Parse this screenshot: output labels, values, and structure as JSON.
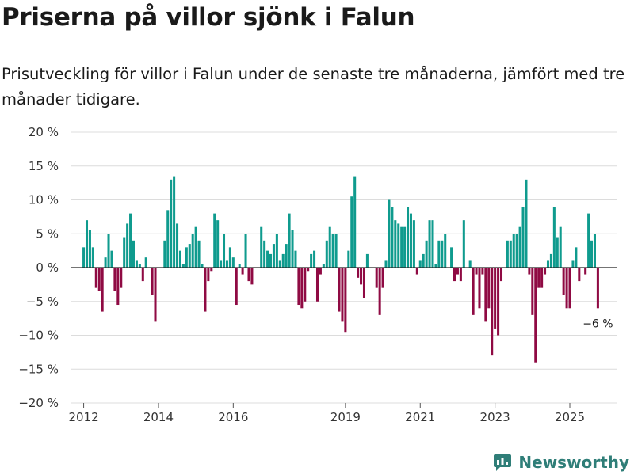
{
  "header": {
    "title": "Priserna på villor sjönk i Falun",
    "subtitle": "Prisutveckling för villor i Falun under de senaste tre månaderna, jämfört med tre månader tidigare."
  },
  "colors": {
    "positive": "#0f9b8e",
    "negative": "#8f0a43",
    "grid": "#dcdcdc",
    "axis": "#222222"
  },
  "brand": {
    "name": "Newsworthy"
  },
  "chart_data": {
    "type": "bar",
    "title": "Priserna på villor sjönk i Falun",
    "subtitle": "Prisutveckling för villor i Falun under de senaste tre månaderna, jämfört med tre månader tidigare.",
    "xlabel": "",
    "ylabel": "",
    "unit": "%",
    "ylim": [
      -20,
      20
    ],
    "yticks": [
      20,
      15,
      10,
      5,
      0,
      -5,
      -10,
      -15,
      -20
    ],
    "ytick_labels": [
      "20 %",
      "15 %",
      "10 %",
      "5 %",
      "0 %",
      "−5 %",
      "−10 %",
      "−15 %",
      "−20 %"
    ],
    "xlim": [
      2011.67,
      2026.25
    ],
    "xticks": [
      2012,
      2014,
      2016,
      2019,
      2021,
      2023,
      2025
    ],
    "xtick_labels": [
      "2012",
      "2014",
      "2016",
      "2019",
      "2021",
      "2023",
      "2025"
    ],
    "grid": true,
    "last_value_label": "−6 %",
    "series": [
      {
        "name": "Prisutveckling",
        "start": 2012.0,
        "step": 0.0833333,
        "values": [
          3,
          7,
          5.5,
          3,
          -3,
          -3.5,
          -6.5,
          1.5,
          5,
          2.5,
          -3.5,
          -5.5,
          -3,
          4.5,
          6.5,
          8,
          4,
          1,
          0.5,
          -2,
          1.5,
          0,
          -4,
          -8,
          0,
          0,
          4,
          8.5,
          13,
          13.5,
          6.5,
          2.5,
          0.5,
          3,
          3.5,
          5,
          6,
          4,
          0.5,
          -6.5,
          -2,
          -0.5,
          8,
          7,
          1,
          5,
          1,
          3,
          1.5,
          -5.5,
          0.5,
          -1,
          5,
          -2,
          -2.5,
          0,
          0,
          6,
          4,
          2.5,
          2,
          3.5,
          5,
          1,
          2,
          3.5,
          8,
          5.5,
          2.5,
          -5.5,
          -6,
          -5,
          -0.5,
          2,
          2.5,
          -5,
          -1,
          0.5,
          4,
          6,
          5,
          5,
          -6.5,
          -8,
          -9.5,
          2.5,
          10.5,
          13.5,
          -1.5,
          -2.5,
          -4.5,
          2,
          0,
          0,
          -3,
          -7,
          -3,
          1,
          10,
          9,
          7,
          6.5,
          6,
          6,
          9,
          8,
          7,
          -1,
          1,
          2,
          4,
          7,
          7,
          0.5,
          4,
          4,
          5,
          0,
          3,
          -2,
          -1,
          -2,
          7,
          0,
          1,
          -7,
          -1,
          -6,
          -1,
          -8,
          -6,
          -13,
          -9,
          -10,
          -2,
          0,
          4,
          4,
          5,
          5,
          6,
          9,
          13,
          -1,
          -7,
          -14,
          -3,
          -3,
          -1,
          1,
          2,
          9,
          4.5,
          6,
          -4,
          -6,
          -6,
          1,
          3,
          -2,
          0,
          -1,
          8,
          4,
          5,
          -6
        ]
      }
    ]
  }
}
